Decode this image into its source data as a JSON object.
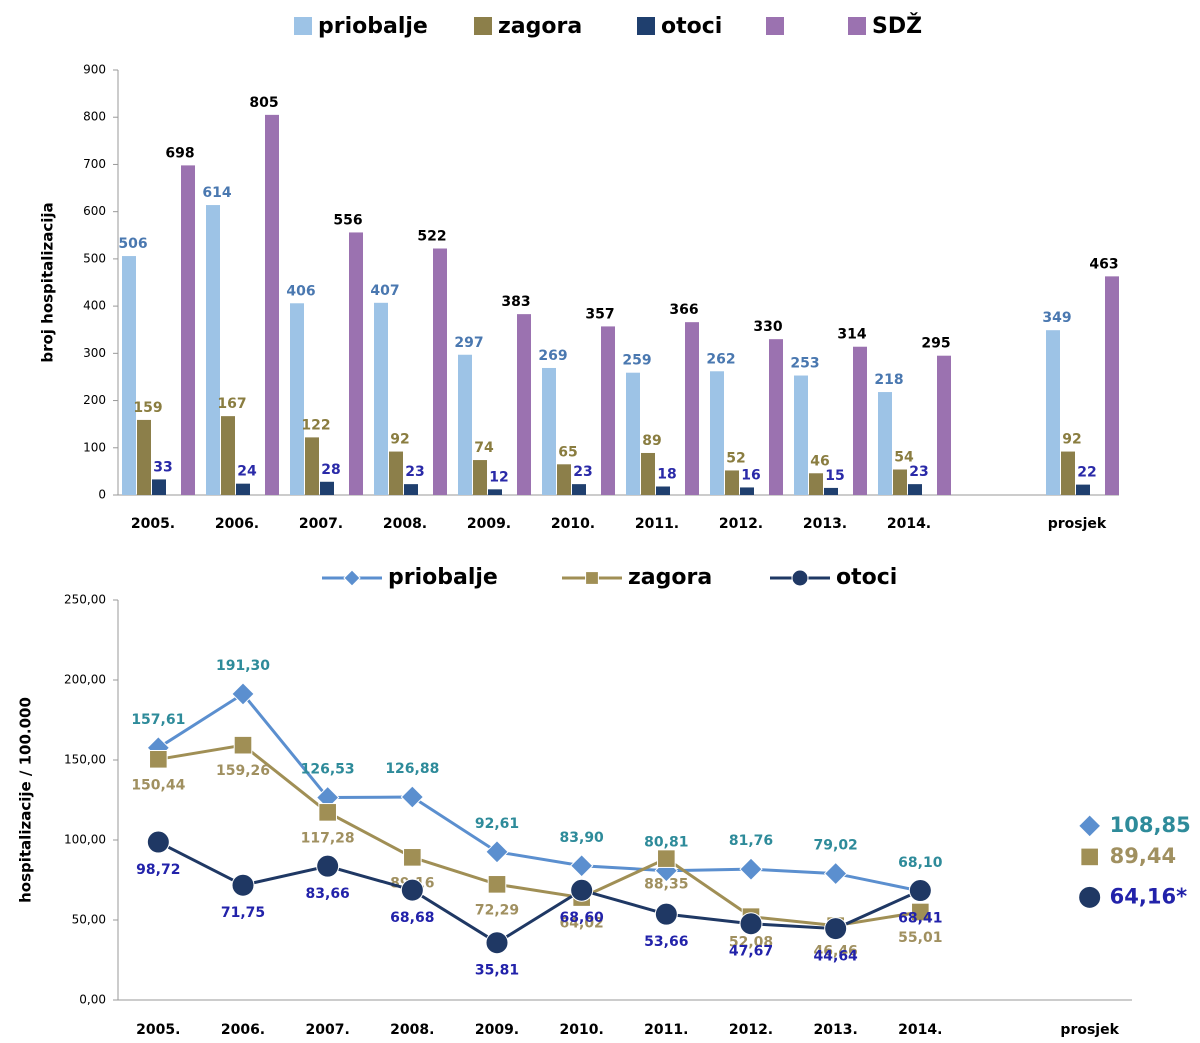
{
  "chart_data": [
    {
      "type": "bar",
      "y_label": "broj hospitalizacija",
      "categories": [
        "2005.",
        "2006.",
        "2007.",
        "2008.",
        "2009.",
        "2010.",
        "2011.",
        "2012.",
        "2013.",
        "2014.",
        null,
        "prosjek"
      ],
      "series": [
        {
          "name": "priobalje",
          "color": "#9dc3e6",
          "label_color": "#4a78b0",
          "values": [
            506,
            614,
            406,
            407,
            297,
            269,
            259,
            262,
            253,
            218,
            null,
            349
          ]
        },
        {
          "name": "zagora",
          "color": "#8c7f4a",
          "label_color": "#8a7d40",
          "values": [
            159,
            167,
            122,
            92,
            74,
            65,
            89,
            52,
            46,
            54,
            null,
            92
          ]
        },
        {
          "name": "otoci",
          "color": "#1f3f6e",
          "label_color": "#2a2aa8",
          "values": [
            33,
            24,
            28,
            23,
            12,
            23,
            18,
            16,
            15,
            23,
            null,
            22
          ]
        },
        {
          "name": "SDŽ",
          "color": "#9b72b0",
          "label_color": "#000000",
          "values": [
            698,
            805,
            556,
            522,
            383,
            357,
            366,
            330,
            314,
            295,
            null,
            463
          ]
        }
      ],
      "ylim": [
        0,
        900
      ],
      "yticks": [
        0,
        100,
        200,
        300,
        400,
        500,
        600,
        700,
        800,
        900
      ],
      "grid": false
    },
    {
      "type": "line",
      "y_label": "hospitalizacije / 100.000",
      "categories": [
        "2005.",
        "2006.",
        "2007.",
        "2008.",
        "2009.",
        "2010.",
        "2011.",
        "2012.",
        "2013.",
        "2014.",
        null,
        "prosjek"
      ],
      "series": [
        {
          "name": "priobalje",
          "color": "#5b8fcf",
          "label_color": "#2e8b9a",
          "marker": "diamond",
          "values": [
            157.61,
            191.3,
            126.53,
            126.88,
            92.61,
            83.9,
            80.81,
            81.76,
            79.02,
            68.1,
            null,
            108.85
          ],
          "value_labels": [
            "157,61",
            "191,30",
            "126,53",
            "126,88",
            "92,61",
            "83,90",
            "80,81",
            "81,76",
            "79,02",
            "68,10",
            null,
            "108,85"
          ]
        },
        {
          "name": "zagora",
          "color": "#a08f55",
          "label_color": "#a09060",
          "marker": "square",
          "values": [
            150.44,
            159.26,
            117.28,
            89.16,
            72.29,
            64.02,
            88.35,
            52.08,
            46.46,
            55.01,
            null,
            89.44
          ],
          "value_labels": [
            "150,44",
            "159,26",
            "117,28",
            "89,16",
            "72,29",
            "64,02",
            "88,35",
            "52,08",
            "46,46",
            "55,01",
            null,
            "89,44"
          ]
        },
        {
          "name": "otoci",
          "color": "#1f3864",
          "label_color": "#2222aa",
          "marker": "circle",
          "values": [
            98.72,
            71.75,
            83.66,
            68.68,
            35.81,
            68.6,
            53.66,
            47.67,
            44.64,
            68.41,
            null,
            64.16
          ],
          "value_labels": [
            "98,72",
            "71,75",
            "83,66",
            "68,68",
            "35,81",
            "68,60",
            "53,66",
            "47,67",
            "44,64",
            "68,41",
            null,
            "64,16*"
          ]
        }
      ],
      "ylim": [
        0,
        250
      ],
      "yticks": [
        {
          "value": 0,
          "label": "0,00"
        },
        {
          "value": 50,
          "label": "50,00"
        },
        {
          "value": 100,
          "label": "100,00"
        },
        {
          "value": 150,
          "label": "150,00"
        },
        {
          "value": 200,
          "label": "200,00"
        },
        {
          "value": 250,
          "label": "250,00"
        }
      ],
      "grid": false
    }
  ]
}
